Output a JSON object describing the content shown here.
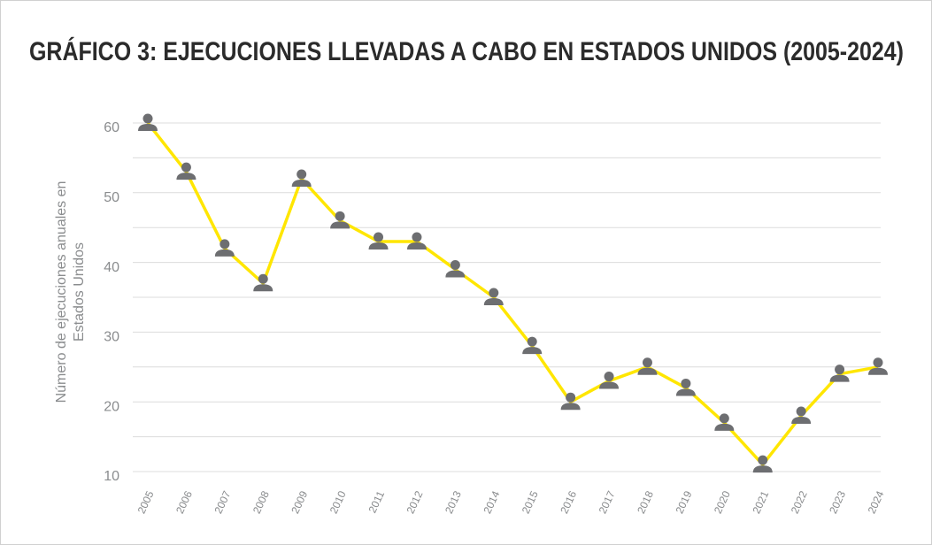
{
  "chart_data": {
    "type": "line",
    "title": "GRÁFICO 3: EJECUCIONES LLEVADAS A CABO EN ESTADOS UNIDOS (2005-2024)",
    "ylabel": [
      "Número de ejecuciones anuales en",
      "Estados Unidos"
    ],
    "categories": [
      "2005",
      "2006",
      "2007",
      "2008",
      "2009",
      "2010",
      "2011",
      "2012",
      "2013",
      "2014",
      "2015",
      "2016",
      "2017",
      "2018",
      "2019",
      "2020",
      "2021",
      "2022",
      "2023",
      "2024"
    ],
    "series": [
      {
        "color": "#ffe600",
        "marker_color": "#6d6e71",
        "values": [
          60,
          53,
          42,
          37,
          52,
          46,
          43,
          43,
          39,
          35,
          28,
          20,
          23,
          25,
          22,
          17,
          11,
          18,
          24,
          25
        ]
      }
    ],
    "ylim": [
      10,
      60
    ],
    "yticks": [
      10,
      20,
      30,
      40,
      50,
      60
    ],
    "yminorticks": [
      15,
      25,
      35,
      45,
      55
    ],
    "grid": true
  }
}
